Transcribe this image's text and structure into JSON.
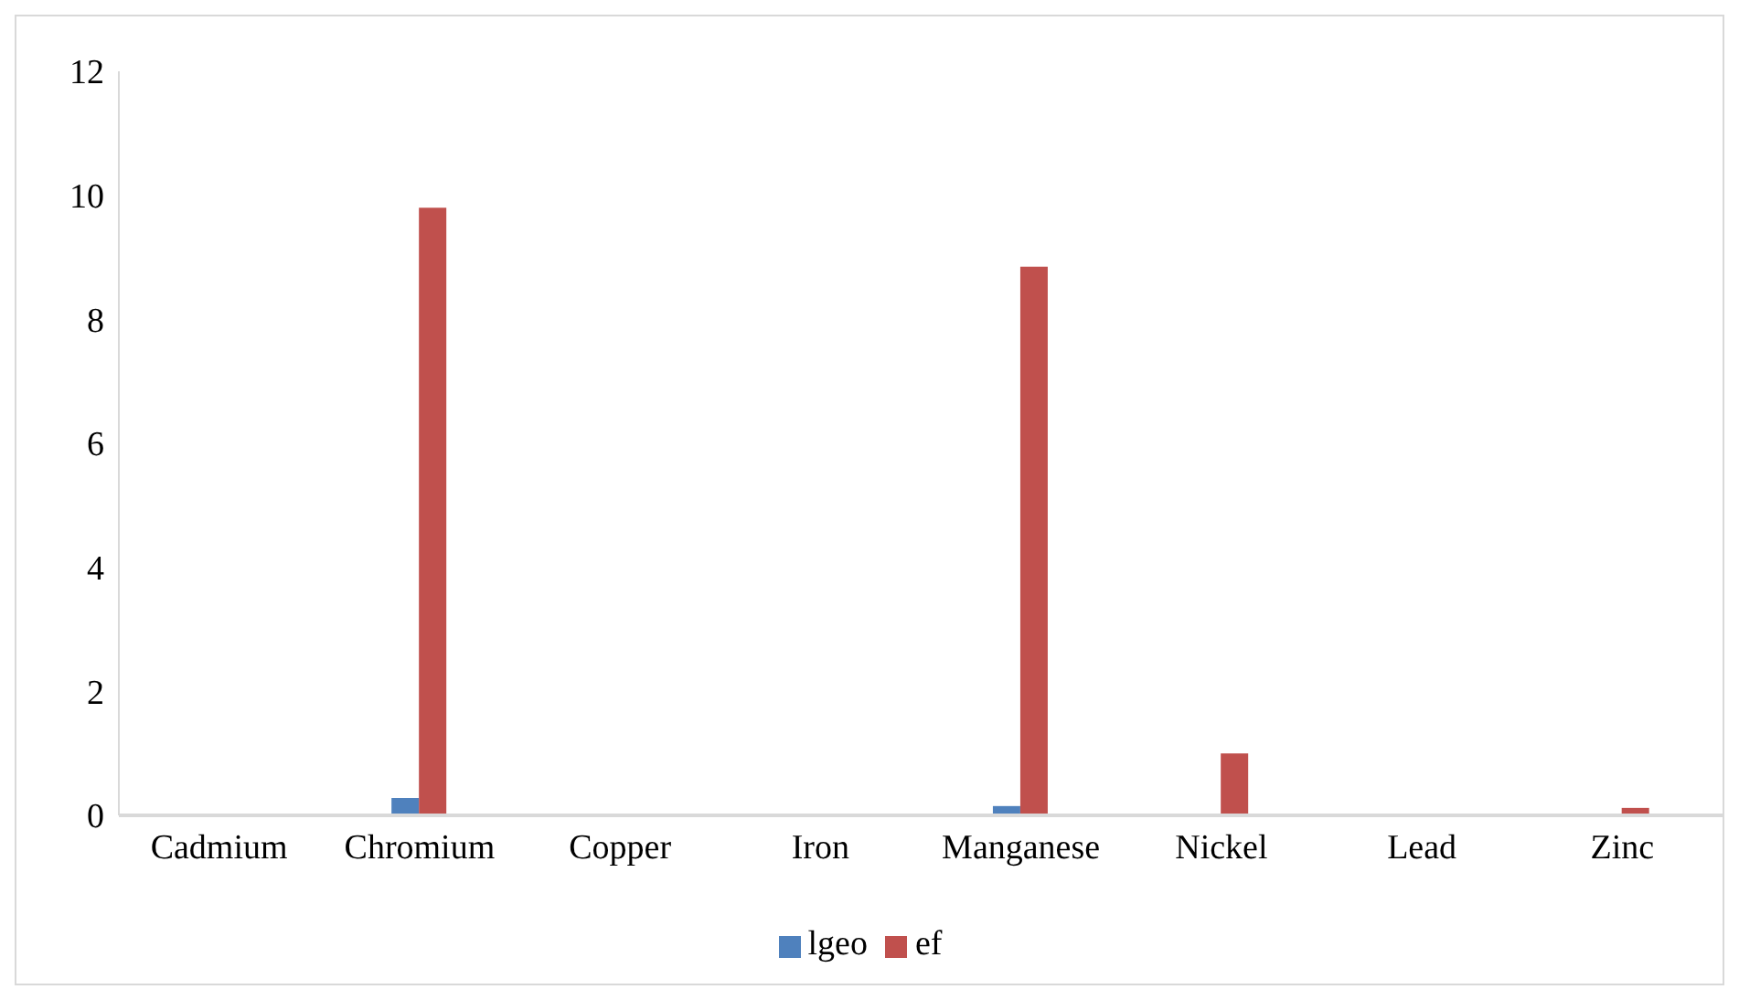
{
  "chart_data": {
    "type": "bar",
    "categories": [
      "Cadmium",
      "Chromium",
      "Copper",
      "Iron",
      "Manganese",
      "Nickel",
      "Lead",
      "Zinc"
    ],
    "series": [
      {
        "name": "lgeo",
        "color": "#4f81bd",
        "values": [
          0,
          0.28,
          0,
          0,
          0.15,
          0,
          0,
          0
        ]
      },
      {
        "name": "ef",
        "color": "#c0504d",
        "values": [
          0,
          9.8,
          0,
          0,
          8.85,
          1.0,
          0,
          0.12
        ]
      }
    ],
    "ylim": [
      0,
      12
    ],
    "yticks": [
      0,
      2,
      4,
      6,
      8,
      10,
      12
    ],
    "grid": false,
    "legend": "bottom"
  }
}
